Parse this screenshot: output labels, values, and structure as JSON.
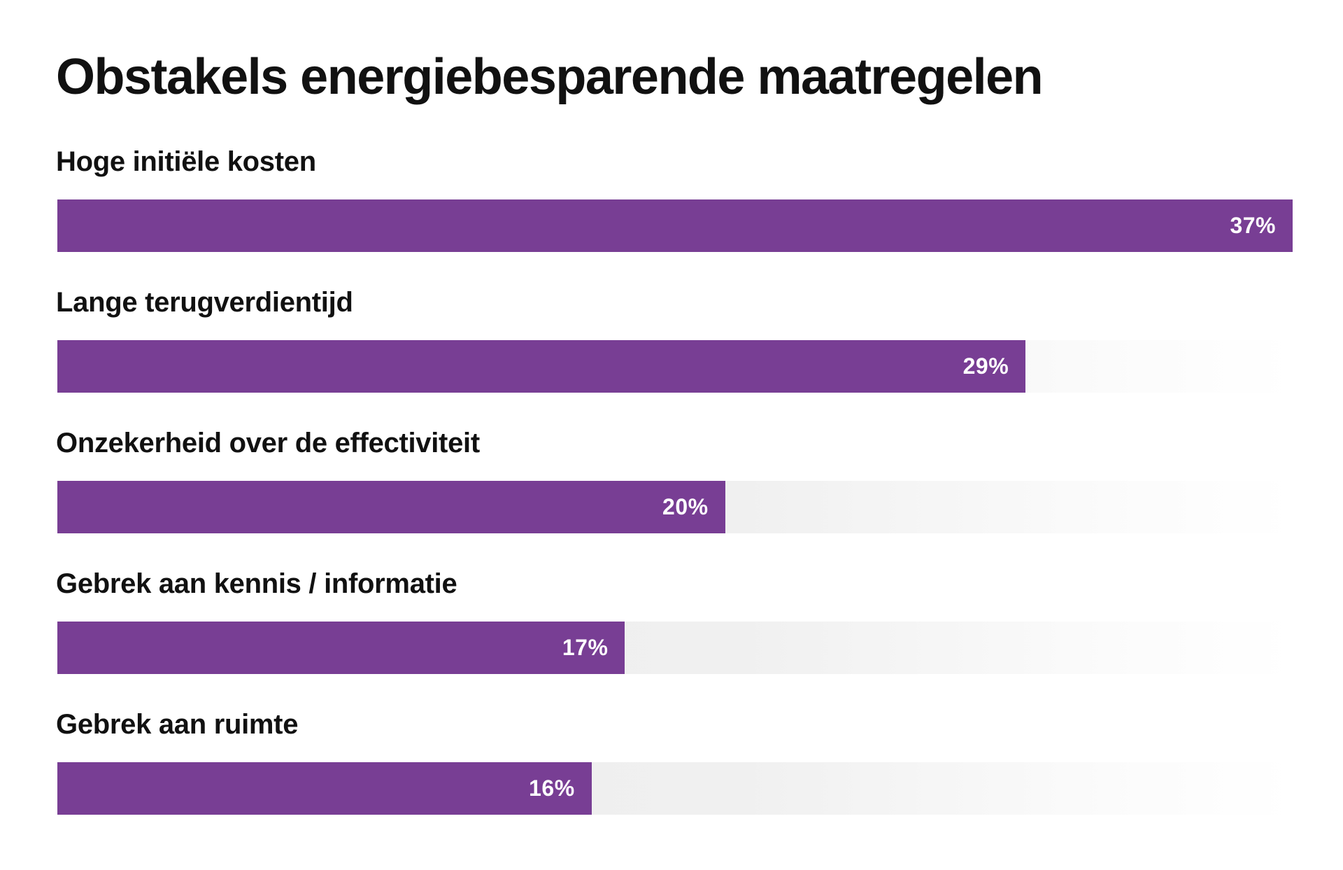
{
  "chart_data": {
    "type": "bar",
    "orientation": "horizontal",
    "title": "Obstakels energiebesparende maatregelen",
    "categories": [
      "Hoge initiële kosten",
      "Lange terugverdientijd",
      "Onzekerheid over de effectiviteit",
      "Gebrek aan kennis / informatie",
      "Gebrek aan ruimte"
    ],
    "values": [
      37,
      29,
      20,
      17,
      16
    ],
    "value_labels": [
      "37%",
      "29%",
      "20%",
      "17%",
      "16%"
    ],
    "unit": "%",
    "xlim": [
      0,
      37
    ],
    "grid": false,
    "legend": "none",
    "colors": {
      "bar": "#783e94",
      "track": "#ececec",
      "value_text": "#ffffff",
      "title": "#111111"
    }
  }
}
